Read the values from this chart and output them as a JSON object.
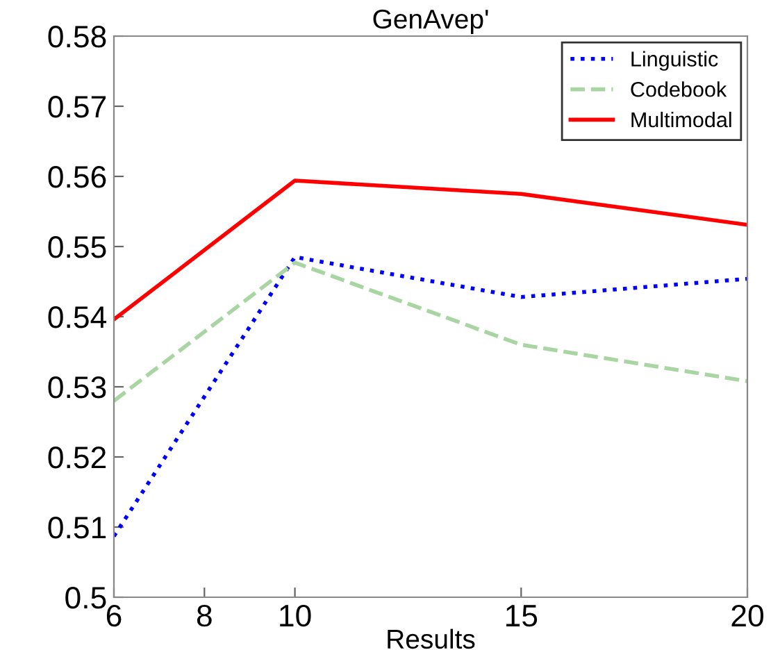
{
  "chart_data": {
    "type": "line",
    "title": "GenAvep'",
    "xlabel": "Results",
    "x": [
      6,
      10,
      15,
      20
    ],
    "series": [
      {
        "name": "Linguistic",
        "color": "#0000ff",
        "line_style": "dotted",
        "values": [
          0.5087,
          0.5485,
          0.5428,
          0.5454
        ]
      },
      {
        "name": "Codebook",
        "color": "#a8d5a2",
        "line_style": "dashed",
        "values": [
          0.528,
          0.5477,
          0.536,
          0.5308
        ]
      },
      {
        "name": "Multimodal",
        "color": "#ff0000",
        "line_style": "solid",
        "values": [
          0.5396,
          0.5594,
          0.5575,
          0.5531
        ]
      }
    ],
    "xlim": [
      6,
      20
    ],
    "xticks": [
      6,
      8,
      10,
      15,
      20
    ],
    "ylim": [
      0.5,
      0.58
    ],
    "yticks": [
      {
        "value": 0.5,
        "label": "0.5"
      },
      0.51,
      0.52,
      0.53,
      0.54,
      0.55,
      0.56,
      0.57,
      0.58
    ],
    "grid": false,
    "legend": "top right",
    "marker": "none"
  }
}
